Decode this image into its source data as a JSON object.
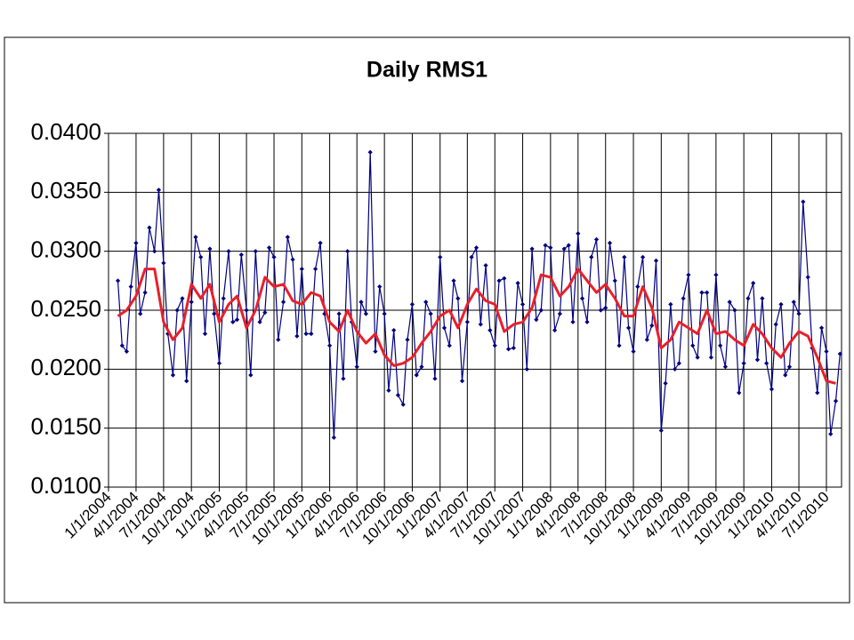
{
  "chart_data": {
    "type": "line",
    "title": "Daily RMS1",
    "xlim": [
      "1/1/2004",
      "8/20/2010"
    ],
    "xticks": [
      "1/1/2004",
      "4/1/2004",
      "7/1/2004",
      "10/1/2004",
      "1/1/2005",
      "4/1/2005",
      "7/1/2005",
      "10/1/2005",
      "1/1/2006",
      "4/1/2006",
      "7/1/2006",
      "10/1/2006",
      "1/1/2007",
      "4/1/2007",
      "7/1/2007",
      "10/1/2007",
      "1/1/2008",
      "4/1/2008",
      "7/1/2008",
      "10/1/2008",
      "1/1/2009",
      "4/1/2009",
      "7/1/2009",
      "10/1/2009",
      "1/1/2010",
      "4/1/2010",
      "7/1/2010"
    ],
    "ylim": [
      0.01,
      0.04
    ],
    "yticks": [
      {
        "value": 0.01,
        "label": "0.0100"
      },
      {
        "value": 0.015,
        "label": "0.0150"
      },
      {
        "value": 0.02,
        "label": "0.0200"
      },
      {
        "value": 0.025,
        "label": "0.0250"
      },
      {
        "value": 0.03,
        "label": "0.0300"
      },
      {
        "value": 0.035,
        "label": "0.0350"
      },
      {
        "value": 0.04,
        "label": "0.0400"
      }
    ],
    "grid": true,
    "series": [
      {
        "color": "#000080",
        "marker": "diamond",
        "x": [
          "2/1/2004",
          "2/15/2004",
          "3/1/2004",
          "3/15/2004",
          "4/1/2004",
          "4/15/2004",
          "5/1/2004",
          "5/15/2004",
          "6/1/2004",
          "6/15/2004",
          "7/1/2004",
          "7/15/2004",
          "8/1/2004",
          "8/15/2004",
          "9/1/2004",
          "9/15/2004",
          "10/1/2004",
          "10/15/2004",
          "11/1/2004",
          "11/15/2004",
          "12/1/2004",
          "12/15/2004",
          "1/1/2005",
          "1/15/2005",
          "2/1/2005",
          "2/15/2005",
          "3/1/2005",
          "3/15/2005",
          "4/1/2005",
          "4/15/2005",
          "5/1/2005",
          "5/15/2005",
          "6/1/2005",
          "6/15/2005",
          "7/1/2005",
          "7/15/2005",
          "8/1/2005",
          "8/15/2005",
          "9/1/2005",
          "9/15/2005",
          "10/1/2005",
          "10/15/2005",
          "11/1/2005",
          "11/15/2005",
          "12/1/2005",
          "12/15/2005",
          "1/1/2006",
          "1/15/2006",
          "2/1/2006",
          "2/15/2006",
          "3/1/2006",
          "3/15/2006",
          "4/1/2006",
          "4/15/2006",
          "5/1/2006",
          "5/15/2006",
          "6/1/2006",
          "6/15/2006",
          "7/1/2006",
          "7/15/2006",
          "8/1/2006",
          "8/15/2006",
          "9/1/2006",
          "9/15/2006",
          "10/1/2006",
          "10/15/2006",
          "11/1/2006",
          "11/15/2006",
          "12/1/2006",
          "12/15/2006",
          "1/1/2007",
          "1/15/2007",
          "2/1/2007",
          "2/15/2007",
          "3/1/2007",
          "3/15/2007",
          "4/1/2007",
          "4/15/2007",
          "5/1/2007",
          "5/15/2007",
          "6/1/2007",
          "6/15/2007",
          "7/1/2007",
          "7/15/2007",
          "8/1/2007",
          "8/15/2007",
          "9/1/2007",
          "9/15/2007",
          "10/1/2007",
          "10/15/2007",
          "11/1/2007",
          "11/15/2007",
          "12/1/2007",
          "12/15/2007",
          "1/1/2008",
          "1/15/2008",
          "2/1/2008",
          "2/15/2008",
          "3/1/2008",
          "3/15/2008",
          "4/1/2008",
          "4/15/2008",
          "5/1/2008",
          "5/15/2008",
          "6/1/2008",
          "6/15/2008",
          "7/1/2008",
          "7/15/2008",
          "8/1/2008",
          "8/15/2008",
          "9/1/2008",
          "9/15/2008",
          "10/1/2008",
          "10/15/2008",
          "11/1/2008",
          "11/15/2008",
          "12/1/2008",
          "12/15/2008",
          "1/1/2009",
          "1/15/2009",
          "2/1/2009",
          "2/15/2009",
          "3/1/2009",
          "3/15/2009",
          "4/1/2009",
          "4/15/2009",
          "5/1/2009",
          "5/15/2009",
          "6/1/2009",
          "6/15/2009",
          "7/1/2009",
          "7/15/2009",
          "8/1/2009",
          "8/15/2009",
          "9/1/2009",
          "9/15/2009",
          "10/1/2009",
          "10/15/2009",
          "11/1/2009",
          "11/15/2009",
          "12/1/2009",
          "12/15/2009",
          "1/1/2010",
          "1/15/2010",
          "2/1/2010",
          "2/15/2010",
          "3/1/2010",
          "3/15/2010",
          "4/1/2010",
          "4/15/2010",
          "5/1/2010",
          "5/15/2010",
          "6/1/2010",
          "6/15/2010",
          "7/1/2010",
          "7/15/2010",
          "8/1/2010",
          "8/15/2010"
        ],
        "values": [
          0.0275,
          0.022,
          0.0215,
          0.027,
          0.0307,
          0.0247,
          0.0265,
          0.032,
          0.03,
          0.0352,
          0.029,
          0.023,
          0.0195,
          0.025,
          0.026,
          0.019,
          0.0257,
          0.0312,
          0.0295,
          0.023,
          0.0302,
          0.0247,
          0.0205,
          0.026,
          0.03,
          0.024,
          0.0242,
          0.0297,
          0.025,
          0.0195,
          0.03,
          0.024,
          0.0248,
          0.0303,
          0.0295,
          0.0225,
          0.0257,
          0.0312,
          0.0293,
          0.0228,
          0.0285,
          0.023,
          0.023,
          0.0285,
          0.0307,
          0.0247,
          0.022,
          0.0142,
          0.0247,
          0.0192,
          0.03,
          0.024,
          0.0202,
          0.0257,
          0.0247,
          0.0384,
          0.0215,
          0.027,
          0.0247,
          0.0182,
          0.0233,
          0.0178,
          0.017,
          0.0225,
          0.0255,
          0.0195,
          0.0202,
          0.0257,
          0.0247,
          0.0192,
          0.0295,
          0.0235,
          0.022,
          0.0275,
          0.026,
          0.019,
          0.024,
          0.0295,
          0.0303,
          0.0238,
          0.0288,
          0.0233,
          0.022,
          0.0275,
          0.0277,
          0.0217,
          0.0218,
          0.0273,
          0.0255,
          0.02,
          0.0302,
          0.0242,
          0.025,
          0.0305,
          0.0303,
          0.0233,
          0.0247,
          0.0302,
          0.0305,
          0.024,
          0.0315,
          0.026,
          0.024,
          0.0295,
          0.031,
          0.025,
          0.0252,
          0.0307,
          0.0275,
          0.022,
          0.0295,
          0.0235,
          0.0215,
          0.027,
          0.0295,
          0.0225,
          0.0237,
          0.0292,
          0.0148,
          0.0188,
          0.0255,
          0.02,
          0.0205,
          0.026,
          0.028,
          0.022,
          0.021,
          0.0265,
          0.0265,
          0.021,
          0.028,
          0.022,
          0.0202,
          0.0257,
          0.025,
          0.018,
          0.0205,
          0.026,
          0.0273,
          0.0208,
          0.026,
          0.0205,
          0.0183,
          0.0238,
          0.0255,
          0.0195,
          0.0202,
          0.0257,
          0.0247,
          0.0342,
          0.0278,
          0.0218,
          0.018,
          0.0235,
          0.0215,
          0.0145,
          0.0173,
          0.0213
        ]
      },
      {
        "color": "#e8202a",
        "x": [
          "2/1/2004",
          "3/1/2004",
          "4/1/2004",
          "5/1/2004",
          "6/1/2004",
          "7/1/2004",
          "8/1/2004",
          "9/1/2004",
          "10/1/2004",
          "11/1/2004",
          "12/1/2004",
          "1/1/2005",
          "2/1/2005",
          "3/1/2005",
          "4/1/2005",
          "5/1/2005",
          "6/1/2005",
          "7/1/2005",
          "8/1/2005",
          "9/1/2005",
          "10/1/2005",
          "11/1/2005",
          "12/1/2005",
          "1/1/2006",
          "2/1/2006",
          "3/1/2006",
          "4/1/2006",
          "5/1/2006",
          "6/1/2006",
          "7/1/2006",
          "8/1/2006",
          "9/1/2006",
          "10/1/2006",
          "11/1/2006",
          "12/1/2006",
          "1/1/2007",
          "2/1/2007",
          "3/1/2007",
          "4/1/2007",
          "5/1/2007",
          "6/1/2007",
          "7/1/2007",
          "8/1/2007",
          "9/1/2007",
          "10/1/2007",
          "11/1/2007",
          "12/1/2007",
          "1/1/2008",
          "2/1/2008",
          "3/1/2008",
          "4/1/2008",
          "5/1/2008",
          "6/1/2008",
          "7/1/2008",
          "8/1/2008",
          "9/1/2008",
          "10/1/2008",
          "11/1/2008",
          "12/1/2008",
          "1/1/2009",
          "2/1/2009",
          "3/1/2009",
          "4/1/2009",
          "5/1/2009",
          "6/1/2009",
          "7/1/2009",
          "8/1/2009",
          "9/1/2009",
          "10/1/2009",
          "11/1/2009",
          "12/1/2009",
          "1/1/2010",
          "2/1/2010",
          "3/1/2010",
          "4/1/2010",
          "5/1/2010",
          "6/1/2010",
          "7/1/2010",
          "8/1/2010"
        ],
        "values": [
          0.0245,
          0.025,
          0.0262,
          0.0285,
          0.0285,
          0.024,
          0.0225,
          0.0235,
          0.0272,
          0.026,
          0.0272,
          0.024,
          0.0255,
          0.0262,
          0.0235,
          0.025,
          0.0278,
          0.027,
          0.0272,
          0.0258,
          0.0255,
          0.0265,
          0.0262,
          0.024,
          0.0232,
          0.025,
          0.0232,
          0.0222,
          0.023,
          0.0212,
          0.0203,
          0.0205,
          0.021,
          0.0222,
          0.0232,
          0.0245,
          0.025,
          0.0235,
          0.0255,
          0.0268,
          0.0258,
          0.0255,
          0.0232,
          0.0238,
          0.024,
          0.0252,
          0.028,
          0.0278,
          0.0262,
          0.027,
          0.0285,
          0.0275,
          0.0265,
          0.0272,
          0.026,
          0.0245,
          0.0245,
          0.027,
          0.0252,
          0.0218,
          0.0225,
          0.024,
          0.0235,
          0.023,
          0.025,
          0.023,
          0.0232,
          0.0225,
          0.022,
          0.0238,
          0.023,
          0.0218,
          0.021,
          0.0222,
          0.0232,
          0.0228,
          0.021,
          0.019,
          0.0188
        ]
      }
    ]
  }
}
